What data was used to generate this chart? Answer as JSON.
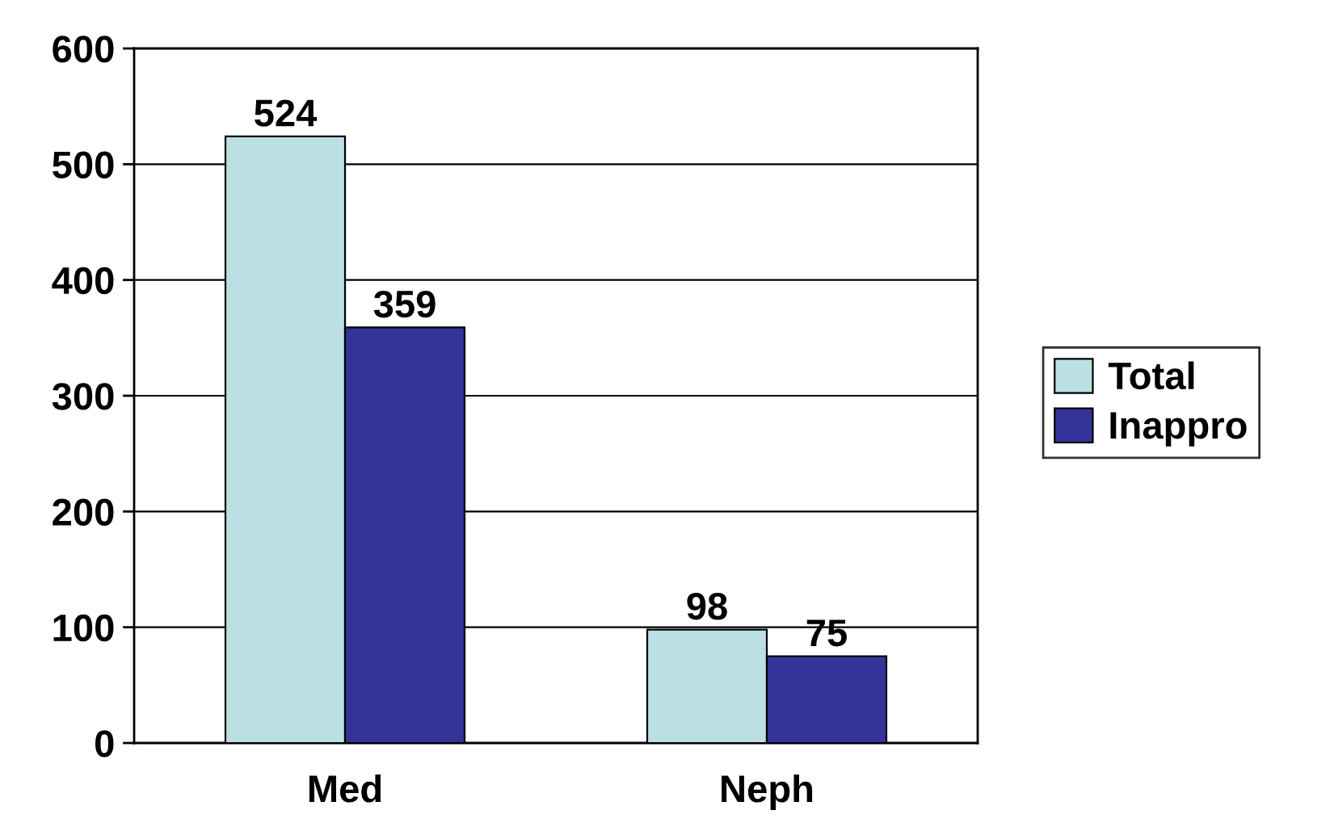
{
  "chart_data": {
    "type": "bar",
    "categories": [
      "Med",
      "Neph"
    ],
    "series": [
      {
        "name": "Total",
        "color": "#bbe0e3",
        "values": [
          524,
          98
        ]
      },
      {
        "name": "Inappro",
        "color": "#333399",
        "values": [
          359,
          75
        ]
      }
    ],
    "ylim": [
      0,
      600
    ],
    "yticks": [
      0,
      100,
      200,
      300,
      400,
      500,
      600
    ],
    "grid": "y",
    "legend": "right",
    "data_labels": true
  }
}
